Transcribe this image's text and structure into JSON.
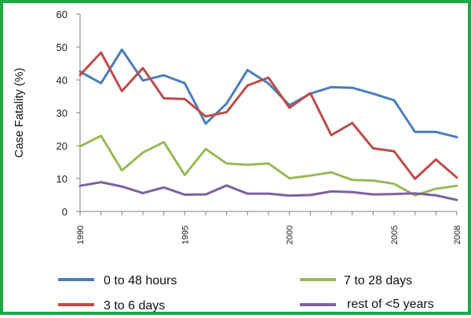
{
  "chart_data": {
    "type": "line",
    "title": "",
    "xlabel": "",
    "ylabel": "Case Fatality (%)",
    "x": [
      1990,
      1991,
      1992,
      1993,
      1994,
      1995,
      1996,
      1997,
      1998,
      1999,
      2000,
      2001,
      2002,
      2003,
      2004,
      2005,
      2006,
      2007,
      2008
    ],
    "xticks": [
      1990,
      1995,
      2000,
      2005,
      2008
    ],
    "xlim": [
      1990,
      2008
    ],
    "ylim": [
      0,
      60
    ],
    "yticks": [
      0,
      10,
      20,
      30,
      40,
      50,
      60
    ],
    "grid": false,
    "legend_position": "bottom",
    "series": [
      {
        "name": "0 to 48 hours",
        "color": "#4a7ebb",
        "values": [
          42.5,
          39,
          49.2,
          39.8,
          41.4,
          39,
          26.7,
          32.8,
          43,
          38.9,
          32.3,
          35.8,
          37.8,
          37.6,
          35.8,
          33.8,
          24.2,
          24.2,
          22.6
        ]
      },
      {
        "name": "3 to 6 days",
        "color": "#be4b48",
        "values": [
          41.5,
          48.3,
          36.6,
          43.6,
          34.4,
          34.2,
          28.9,
          30.2,
          38.3,
          40.7,
          31.5,
          36,
          23.2,
          26.9,
          19.2,
          18.3,
          9.9,
          15.8,
          10.3
        ]
      },
      {
        "name": "7 to 28 days",
        "color": "#98b954",
        "values": [
          19.8,
          23,
          12.5,
          17.9,
          21.1,
          11.1,
          19,
          14.6,
          14.2,
          14.6,
          10.1,
          10.9,
          11.9,
          9.6,
          9.4,
          8.4,
          4.9,
          6.9,
          7.8
        ]
      },
      {
        "name": "rest of <5 years",
        "color": "#7d60a0",
        "values": [
          7.8,
          8.9,
          7.6,
          5.6,
          7.3,
          5.1,
          5.2,
          7.9,
          5.4,
          5.4,
          4.8,
          5,
          6.1,
          5.9,
          5.2,
          5.3,
          5.5,
          4.9,
          3.5
        ]
      }
    ]
  }
}
